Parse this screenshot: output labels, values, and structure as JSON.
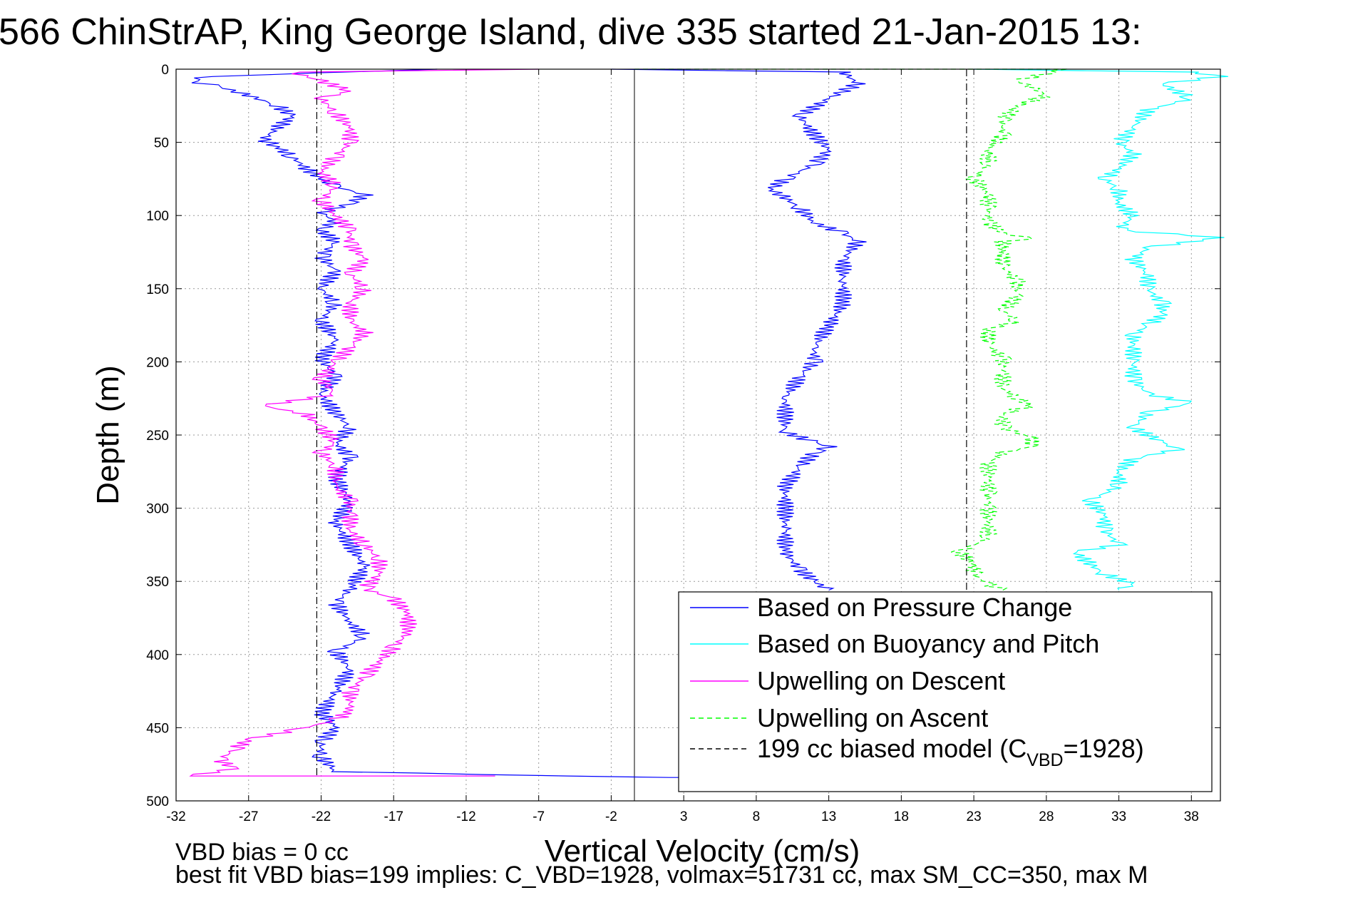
{
  "chart_data": {
    "type": "line",
    "title": "566 ChinStrAP, King George Island, dive 335 started 21-Jan-2015 13:",
    "xlabel": "Vertical Velocity (cm/s)",
    "ylabel": "Depth (m)",
    "xlim": [
      -32,
      40
    ],
    "ylim": [
      500,
      0
    ],
    "xticks": [
      -32,
      -27,
      -22,
      -17,
      -12,
      -7,
      -2,
      3,
      8,
      13,
      18,
      23,
      28,
      33,
      38
    ],
    "yticks": [
      0,
      50,
      100,
      150,
      200,
      250,
      300,
      350,
      400,
      450,
      500
    ],
    "grid": true,
    "legend_position": "bottom-right",
    "zero_line_x": -0.4,
    "series": [
      {
        "name": "Based on Pressure Change",
        "color": "#0000ff",
        "style": "solid",
        "points": [
          [
            -14,
            0
          ],
          [
            -30,
            5
          ],
          [
            -31,
            8
          ],
          [
            -29,
            12
          ],
          [
            -27,
            18
          ],
          [
            -25,
            25
          ],
          [
            -24,
            32
          ],
          [
            -25,
            40
          ],
          [
            -26,
            48
          ],
          [
            -25,
            53
          ],
          [
            -24,
            60
          ],
          [
            -23,
            68
          ],
          [
            -22,
            75
          ],
          [
            -21,
            80
          ],
          [
            -19,
            86
          ],
          [
            -20,
            92
          ],
          [
            -22,
            98
          ],
          [
            -21,
            104
          ],
          [
            -22,
            110
          ],
          [
            -21,
            118
          ],
          [
            -22,
            128
          ],
          [
            -21,
            138
          ],
          [
            -22,
            150
          ],
          [
            -21,
            160
          ],
          [
            -22,
            172
          ],
          [
            -21,
            185
          ],
          [
            -22,
            198
          ],
          [
            -21,
            210
          ],
          [
            -22,
            222
          ],
          [
            -21,
            235
          ],
          [
            -20,
            245
          ],
          [
            -21,
            255
          ],
          [
            -20,
            265
          ],
          [
            -21,
            280
          ],
          [
            -20,
            295
          ],
          [
            -21,
            310
          ],
          [
            -20,
            325
          ],
          [
            -19,
            340
          ],
          [
            -20,
            355
          ],
          [
            -21,
            365
          ],
          [
            -20,
            378
          ],
          [
            -19,
            388
          ],
          [
            -21,
            398
          ],
          [
            -20,
            410
          ],
          [
            -21,
            425
          ],
          [
            -22,
            440
          ],
          [
            -21,
            450
          ],
          [
            -22,
            460
          ],
          [
            -22,
            470
          ],
          [
            -21,
            480
          ],
          [
            -5,
            483
          ],
          [
            2,
            484
          ],
          [
            8,
            484
          ]
        ]
      },
      {
        "name": "Based on Pressure Change",
        "color": "#0000ff",
        "style": "solid",
        "points": [
          [
            -2,
            0
          ],
          [
            14,
            2
          ],
          [
            15,
            10
          ],
          [
            13,
            20
          ],
          [
            11,
            32
          ],
          [
            12,
            45
          ],
          [
            13,
            55
          ],
          [
            12,
            65
          ],
          [
            10,
            75
          ],
          [
            9,
            82
          ],
          [
            10,
            88
          ],
          [
            11,
            95
          ],
          [
            12,
            105
          ],
          [
            14,
            112
          ],
          [
            15,
            118
          ],
          [
            14,
            130
          ],
          [
            14,
            145
          ],
          [
            14,
            160
          ],
          [
            13,
            175
          ],
          [
            12,
            190
          ],
          [
            12,
            200
          ],
          [
            11,
            210
          ],
          [
            10,
            225
          ],
          [
            10,
            238
          ],
          [
            10,
            248
          ],
          [
            12,
            255
          ],
          [
            13,
            258
          ],
          [
            12,
            262
          ],
          [
            11,
            272
          ],
          [
            10,
            285
          ],
          [
            10,
            300
          ],
          [
            10,
            315
          ],
          [
            10,
            330
          ],
          [
            11,
            342
          ],
          [
            12,
            350
          ],
          [
            13,
            356
          ]
        ]
      },
      {
        "name": "Based on Buoyancy and Pitch",
        "color": "#00ffff",
        "style": "solid",
        "points": [
          [
            23,
            0
          ],
          [
            38,
            2
          ],
          [
            40,
            5
          ],
          [
            36,
            10
          ],
          [
            38,
            20
          ],
          [
            35,
            28
          ],
          [
            34,
            40
          ],
          [
            33,
            50
          ],
          [
            34,
            58
          ],
          [
            33,
            68
          ],
          [
            32,
            75
          ],
          [
            33,
            82
          ],
          [
            33,
            92
          ],
          [
            34,
            100
          ],
          [
            33,
            110
          ],
          [
            40,
            115
          ],
          [
            35,
            122
          ],
          [
            34,
            130
          ],
          [
            35,
            140
          ],
          [
            35,
            150
          ],
          [
            36,
            160
          ],
          [
            36,
            168
          ],
          [
            35,
            175
          ],
          [
            34,
            182
          ],
          [
            34,
            190
          ],
          [
            34,
            200
          ],
          [
            34,
            212
          ],
          [
            35,
            222
          ],
          [
            38,
            228
          ],
          [
            35,
            235
          ],
          [
            34,
            245
          ],
          [
            36,
            255
          ],
          [
            37,
            260
          ],
          [
            34,
            266
          ],
          [
            33,
            275
          ],
          [
            33,
            285
          ],
          [
            31,
            295
          ],
          [
            32,
            305
          ],
          [
            32,
            315
          ],
          [
            33,
            325
          ],
          [
            30,
            330
          ],
          [
            31,
            338
          ],
          [
            32,
            345
          ],
          [
            34,
            352
          ],
          [
            33,
            356
          ]
        ]
      },
      {
        "name": "Upwelling on Descent",
        "color": "#ff00ff",
        "style": "solid",
        "points": [
          [
            -7,
            0
          ],
          [
            -24,
            2
          ],
          [
            -22,
            8
          ],
          [
            -20,
            15
          ],
          [
            -22,
            20
          ],
          [
            -21,
            30
          ],
          [
            -20,
            40
          ],
          [
            -20,
            50
          ],
          [
            -21,
            60
          ],
          [
            -22,
            70
          ],
          [
            -21,
            80
          ],
          [
            -22,
            90
          ],
          [
            -21,
            100
          ],
          [
            -20,
            110
          ],
          [
            -20,
            120
          ],
          [
            -19,
            130
          ],
          [
            -20,
            140
          ],
          [
            -19,
            150
          ],
          [
            -20,
            160
          ],
          [
            -20,
            172
          ],
          [
            -19,
            180
          ],
          [
            -20,
            190
          ],
          [
            -21,
            200
          ],
          [
            -22,
            212
          ],
          [
            -21,
            222
          ],
          [
            -26,
            230
          ],
          [
            -23,
            236
          ],
          [
            -22,
            245
          ],
          [
            -21,
            255
          ],
          [
            -22,
            262
          ],
          [
            -21,
            272
          ],
          [
            -21,
            285
          ],
          [
            -20,
            295
          ],
          [
            -20,
            305
          ],
          [
            -20,
            315
          ],
          [
            -19,
            325
          ],
          [
            -18,
            335
          ],
          [
            -18,
            345
          ],
          [
            -19,
            355
          ],
          [
            -17,
            362
          ],
          [
            -16,
            372
          ],
          [
            -16,
            385
          ],
          [
            -17,
            395
          ],
          [
            -18,
            405
          ],
          [
            -19,
            415
          ],
          [
            -20,
            425
          ],
          [
            -20,
            438
          ],
          [
            -21,
            445
          ],
          [
            -24,
            452
          ],
          [
            -27,
            458
          ],
          [
            -28,
            465
          ],
          [
            -29,
            472
          ],
          [
            -28,
            478
          ],
          [
            -31,
            483
          ],
          [
            -10,
            483
          ]
        ]
      },
      {
        "name": "Upwelling on Ascent",
        "color": "#00ff00",
        "style": "dashed",
        "points": [
          [
            -0.4,
            0
          ],
          [
            29,
            0
          ],
          [
            28,
            3
          ],
          [
            26,
            8
          ],
          [
            27,
            12
          ],
          [
            28,
            18
          ],
          [
            26,
            25
          ],
          [
            25,
            35
          ],
          [
            25,
            45
          ],
          [
            24,
            55
          ],
          [
            24,
            65
          ],
          [
            23,
            75
          ],
          [
            24,
            85
          ],
          [
            24,
            95
          ],
          [
            24,
            105
          ],
          [
            25,
            112
          ],
          [
            27,
            116
          ],
          [
            25,
            118
          ],
          [
            25,
            125
          ],
          [
            25,
            135
          ],
          [
            26,
            145
          ],
          [
            26,
            155
          ],
          [
            25,
            165
          ],
          [
            26,
            172
          ],
          [
            24,
            178
          ],
          [
            24,
            188
          ],
          [
            25,
            198
          ],
          [
            25,
            208
          ],
          [
            25,
            218
          ],
          [
            26,
            225
          ],
          [
            27,
            230
          ],
          [
            25,
            235
          ],
          [
            25,
            245
          ],
          [
            27,
            252
          ],
          [
            27,
            258
          ],
          [
            25,
            262
          ],
          [
            24,
            270
          ],
          [
            24,
            280
          ],
          [
            24,
            290
          ],
          [
            24,
            300
          ],
          [
            24,
            310
          ],
          [
            24,
            320
          ],
          [
            22,
            330
          ],
          [
            23,
            338
          ],
          [
            23,
            345
          ],
          [
            24,
            352
          ],
          [
            25,
            356
          ]
        ]
      },
      {
        "name": "199 cc biased model (C_VBD=1928)",
        "color": "#000000",
        "style": "dashdot",
        "points": [
          [
            -22.3,
            0
          ],
          [
            -22.3,
            483
          ]
        ]
      },
      {
        "name": "199 cc biased model (C_VBD=1928)",
        "color": "#000000",
        "style": "dashdot",
        "points": [
          [
            22.5,
            0
          ],
          [
            22.5,
            356
          ]
        ]
      }
    ],
    "legend_entries": [
      {
        "label": "Based on Pressure Change",
        "color": "#0000ff",
        "style": "solid"
      },
      {
        "label": "Based on Buoyancy and Pitch",
        "color": "#00ffff",
        "style": "solid"
      },
      {
        "label": "Upwelling on Descent",
        "color": "#ff00ff",
        "style": "solid"
      },
      {
        "label": "Upwelling on Ascent",
        "color": "#00ff00",
        "style": "dashed"
      },
      {
        "label": "199 cc biased model (C",
        "sub": "VBD",
        "suffix": "=1928)",
        "color": "#000000",
        "style": "dashed"
      }
    ]
  },
  "footer": {
    "line1": "VBD bias = 0 cc",
    "line2": "best fit VBD bias=199 implies: C_VBD=1928, volmax=51731 cc, max SM_CC=350, max M"
  }
}
